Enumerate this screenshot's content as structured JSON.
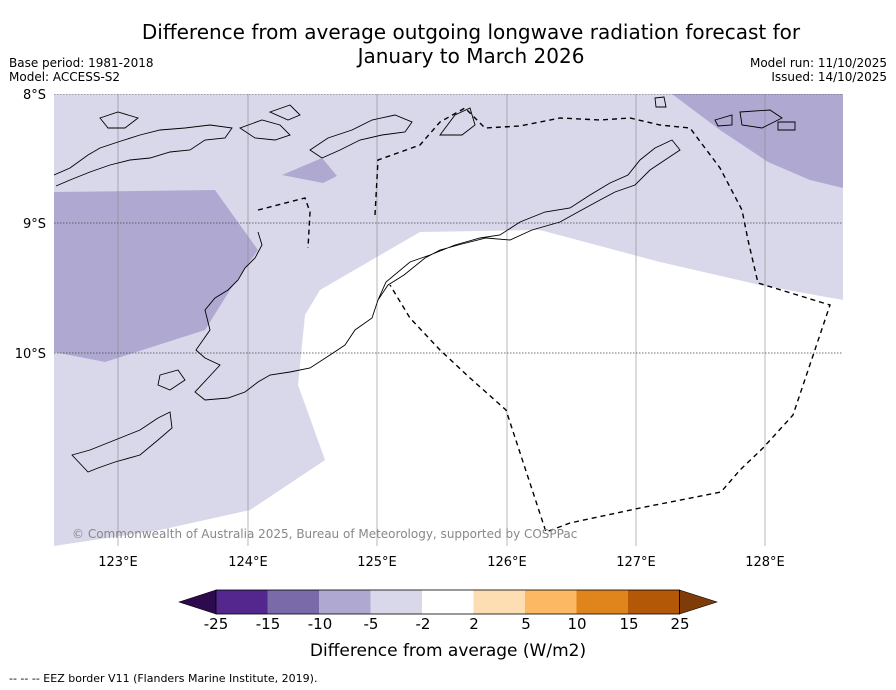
{
  "title": {
    "line1": "Difference from average outgoing longwave radiation forecast for",
    "line2": "January to March 2026"
  },
  "meta_left": {
    "base_period": "Base period: 1981-2018",
    "model": "Model: ACCESS-S2"
  },
  "meta_right": {
    "model_run": "Model run: 11/10/2025",
    "issued": "Issued: 14/10/2025"
  },
  "map": {
    "lat_labels": [
      "8°S",
      "9°S",
      "10°S"
    ],
    "lon_labels": [
      "123°E",
      "124°E",
      "125°E",
      "126°E",
      "127°E",
      "128°E"
    ],
    "copyright": "© Commonwealth of Australia 2025, Bureau of Meteorology, supported by COSPPac"
  },
  "colorbar": {
    "title": "Difference from average (W/m2)",
    "tick_labels": [
      "-25",
      "-15",
      "-10",
      "-5",
      "-2",
      "2",
      "5",
      "10",
      "15",
      "25"
    ],
    "colors": {
      "under": "#2d0a4e",
      "c1": "#54278f",
      "c2": "#7a6aaa",
      "c3": "#afa9d2",
      "c4": "#d8d8ea",
      "c5": "#ffffff",
      "c6": "#fddeb2",
      "c7": "#fdb863",
      "c8": "#df851b",
      "c9": "#b35806",
      "over": "#7f3b08"
    }
  },
  "footnote": "--  --  -- EEZ border V11 (Flanders Marine Institute, 2019)."
}
